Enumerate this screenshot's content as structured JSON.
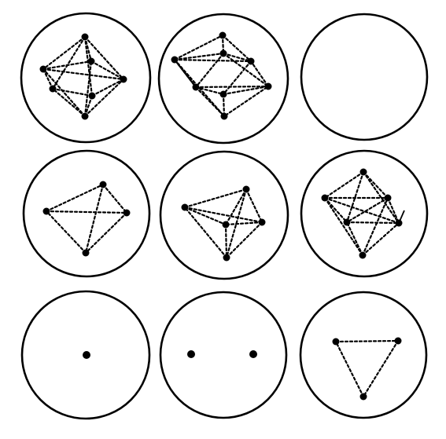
{
  "figure": {
    "panels": [
      {
        "id": "panel-1",
        "dots": 6,
        "shape": "octahedron"
      },
      {
        "id": "panel-2",
        "dots": 8,
        "shape": "square-antiprism"
      },
      {
        "id": "panel-3",
        "dots": 0,
        "shape": "empty"
      },
      {
        "id": "panel-4",
        "dots": 4,
        "shape": "tetrahedron"
      },
      {
        "id": "panel-5",
        "dots": 5,
        "shape": "trigonal-bipyramid"
      },
      {
        "id": "panel-6",
        "dots": 7,
        "shape": "pentagonal-bipyramid"
      },
      {
        "id": "panel-7",
        "dots": 1,
        "shape": "point"
      },
      {
        "id": "panel-8",
        "dots": 2,
        "shape": "pair"
      },
      {
        "id": "panel-9",
        "dots": 3,
        "shape": "triangle"
      }
    ],
    "colors": {
      "ink": "#000000",
      "background": "#ffffff"
    }
  }
}
